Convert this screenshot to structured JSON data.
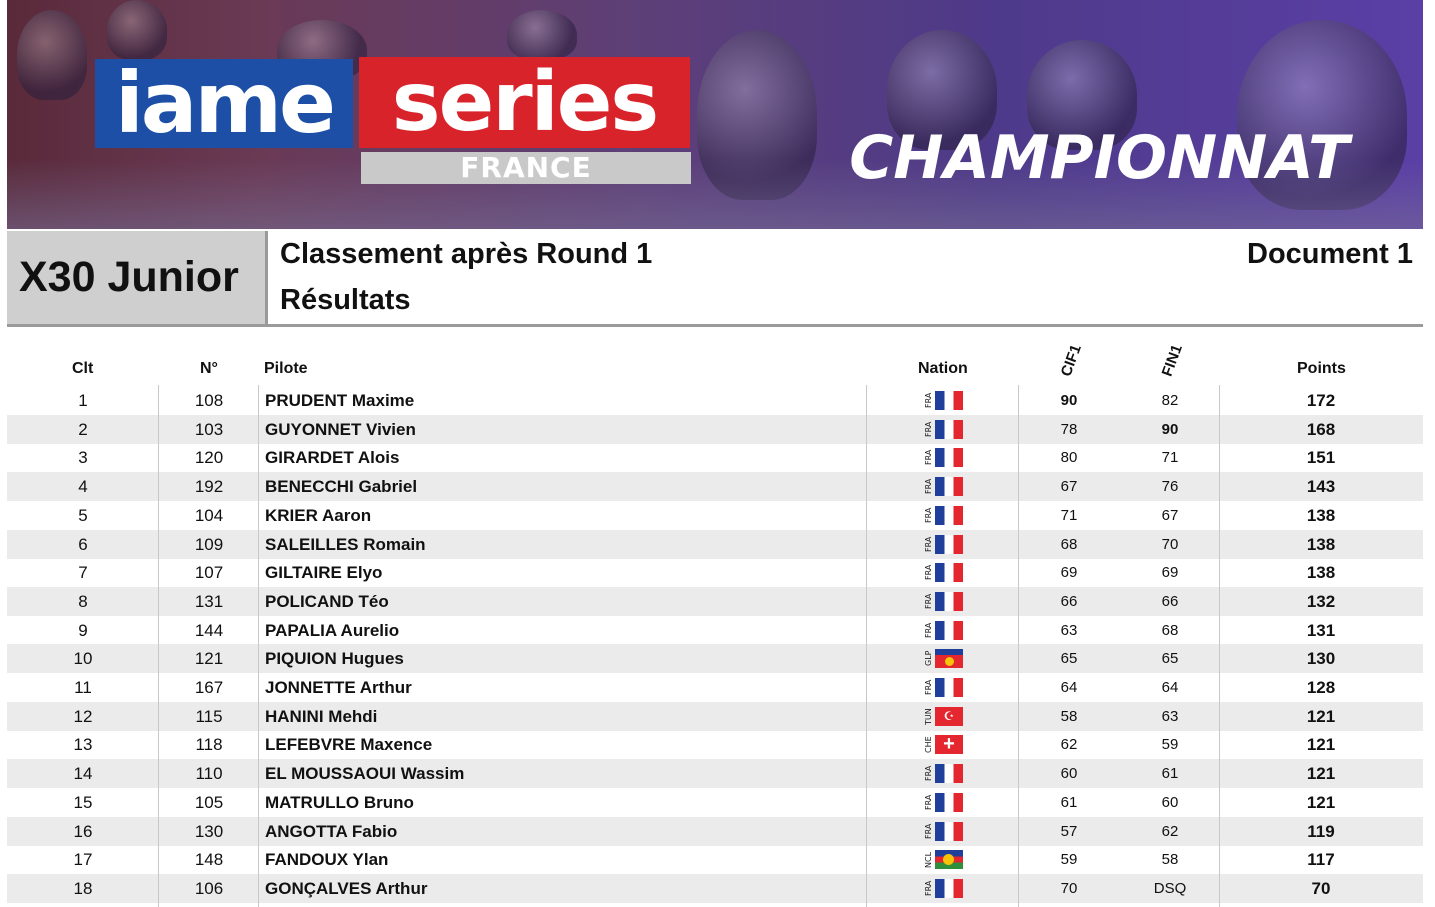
{
  "banner": {
    "logo_iame": "iame",
    "logo_series": "series",
    "logo_country": "FRANCE",
    "headline": "CHAMPIONNAT"
  },
  "header": {
    "category": "X30 Junior",
    "title": "Classement après Round 1",
    "subtitle": "Résultats",
    "document": "Document 1"
  },
  "columns": {
    "clt": "Clt",
    "num": "N°",
    "pilote": "Pilote",
    "nation": "Nation",
    "race1": "CIF1",
    "race2": "FIN1",
    "points": "Points"
  },
  "colors": {
    "fra_blue": "#1f3f9a",
    "fra_red": "#e4262e",
    "row_alt": "#ebebeb",
    "category_bg": "#cfcfcf"
  },
  "rows": [
    {
      "clt": "1",
      "num": "108",
      "pilote": "PRUDENT Maxime",
      "nation": "FRA",
      "cif1": "90",
      "fin1": "82",
      "points": "172",
      "best": "cif1"
    },
    {
      "clt": "2",
      "num": "103",
      "pilote": "GUYONNET Vivien",
      "nation": "FRA",
      "cif1": "78",
      "fin1": "90",
      "points": "168",
      "best": "fin1"
    },
    {
      "clt": "3",
      "num": "120",
      "pilote": "GIRARDET Alois",
      "nation": "FRA",
      "cif1": "80",
      "fin1": "71",
      "points": "151",
      "best": ""
    },
    {
      "clt": "4",
      "num": "192",
      "pilote": "BENECCHI Gabriel",
      "nation": "FRA",
      "cif1": "67",
      "fin1": "76",
      "points": "143",
      "best": ""
    },
    {
      "clt": "5",
      "num": "104",
      "pilote": "KRIER Aaron",
      "nation": "FRA",
      "cif1": "71",
      "fin1": "67",
      "points": "138",
      "best": ""
    },
    {
      "clt": "6",
      "num": "109",
      "pilote": "SALEILLES Romain",
      "nation": "FRA",
      "cif1": "68",
      "fin1": "70",
      "points": "138",
      "best": ""
    },
    {
      "clt": "7",
      "num": "107",
      "pilote": "GILTAIRE Elyo",
      "nation": "FRA",
      "cif1": "69",
      "fin1": "69",
      "points": "138",
      "best": ""
    },
    {
      "clt": "8",
      "num": "131",
      "pilote": "POLICAND Téo",
      "nation": "FRA",
      "cif1": "66",
      "fin1": "66",
      "points": "132",
      "best": ""
    },
    {
      "clt": "9",
      "num": "144",
      "pilote": "PAPALIA Aurelio",
      "nation": "FRA",
      "cif1": "63",
      "fin1": "68",
      "points": "131",
      "best": ""
    },
    {
      "clt": "10",
      "num": "121",
      "pilote": "PIQUION Hugues",
      "nation": "GLP",
      "cif1": "65",
      "fin1": "65",
      "points": "130",
      "best": ""
    },
    {
      "clt": "11",
      "num": "167",
      "pilote": "JONNETTE Arthur",
      "nation": "FRA",
      "cif1": "64",
      "fin1": "64",
      "points": "128",
      "best": ""
    },
    {
      "clt": "12",
      "num": "115",
      "pilote": "HANINI Mehdi",
      "nation": "TUN",
      "cif1": "58",
      "fin1": "63",
      "points": "121",
      "best": ""
    },
    {
      "clt": "13",
      "num": "118",
      "pilote": "LEFEBVRE Maxence",
      "nation": "CHE",
      "cif1": "62",
      "fin1": "59",
      "points": "121",
      "best": ""
    },
    {
      "clt": "14",
      "num": "110",
      "pilote": "EL MOUSSAOUI Wassim",
      "nation": "FRA",
      "cif1": "60",
      "fin1": "61",
      "points": "121",
      "best": ""
    },
    {
      "clt": "15",
      "num": "105",
      "pilote": "MATRULLO Bruno",
      "nation": "FRA",
      "cif1": "61",
      "fin1": "60",
      "points": "121",
      "best": ""
    },
    {
      "clt": "16",
      "num": "130",
      "pilote": "ANGOTTA Fabio",
      "nation": "FRA",
      "cif1": "57",
      "fin1": "62",
      "points": "119",
      "best": ""
    },
    {
      "clt": "17",
      "num": "148",
      "pilote": "FANDOUX Ylan",
      "nation": "NCL",
      "cif1": "59",
      "fin1": "58",
      "points": "117",
      "best": ""
    },
    {
      "clt": "18",
      "num": "106",
      "pilote": "GONÇALVES Arthur",
      "nation": "FRA",
      "cif1": "70",
      "fin1": "DSQ",
      "points": "70",
      "best": ""
    }
  ]
}
